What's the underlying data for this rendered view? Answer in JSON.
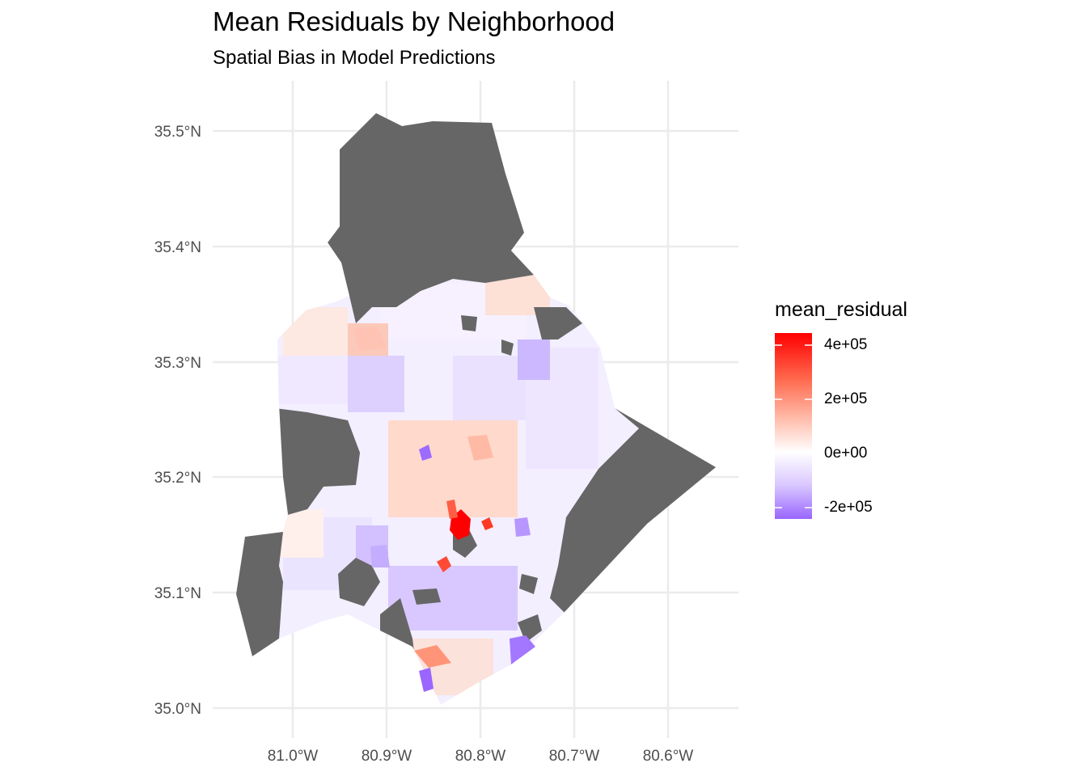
{
  "title": "Mean Residuals by Neighborhood",
  "subtitle": "Spatial Bias in Model Predictions",
  "colors": {
    "low": "#9966ff",
    "mid": "#ffffff",
    "high": "#ff0000",
    "na": "#666666",
    "grid": "#ebebeb"
  },
  "chart_data": {
    "type": "choropleth",
    "title": "Mean Residuals by Neighborhood",
    "subtitle": "Spatial Bias in Model Predictions",
    "fill_variable": "mean_residual",
    "x_axis": {
      "ticks": [
        "81.0°W",
        "80.9°W",
        "80.8°W",
        "80.7°W",
        "80.6°W"
      ],
      "range": [
        -81.08,
        -80.53
      ]
    },
    "y_axis": {
      "ticks": [
        "35.5°N",
        "35.4°N",
        "35.3°N",
        "35.2°N",
        "35.1°N",
        "35.0°N"
      ],
      "range": [
        34.99,
        35.53
      ]
    },
    "legend": {
      "title": "mean_residual",
      "labels": [
        "4e+05",
        "2e+05",
        "0e+00",
        "-2e+05"
      ],
      "values": [
        400000,
        200000,
        0,
        -200000
      ],
      "range": [
        -250000,
        440000
      ],
      "position": "right"
    },
    "approximate_regions": [
      {
        "name": "north (no data)",
        "value": null
      },
      {
        "name": "east (no data)",
        "value": null
      },
      {
        "name": "west (no data)",
        "value": null
      },
      {
        "name": "south-west (no data)",
        "value": null
      },
      {
        "name": "central hotspot",
        "value": 420000
      },
      {
        "name": "south-central",
        "value": 300000
      },
      {
        "name": "south",
        "value": 220000
      },
      {
        "name": "south-east corner",
        "value": -230000
      },
      {
        "name": "south tip",
        "value": -240000
      },
      {
        "name": "central west",
        "value": -220000
      },
      {
        "name": "north-east interior",
        "value": 80000
      },
      {
        "name": "general mixed",
        "value": -30000
      }
    ]
  }
}
